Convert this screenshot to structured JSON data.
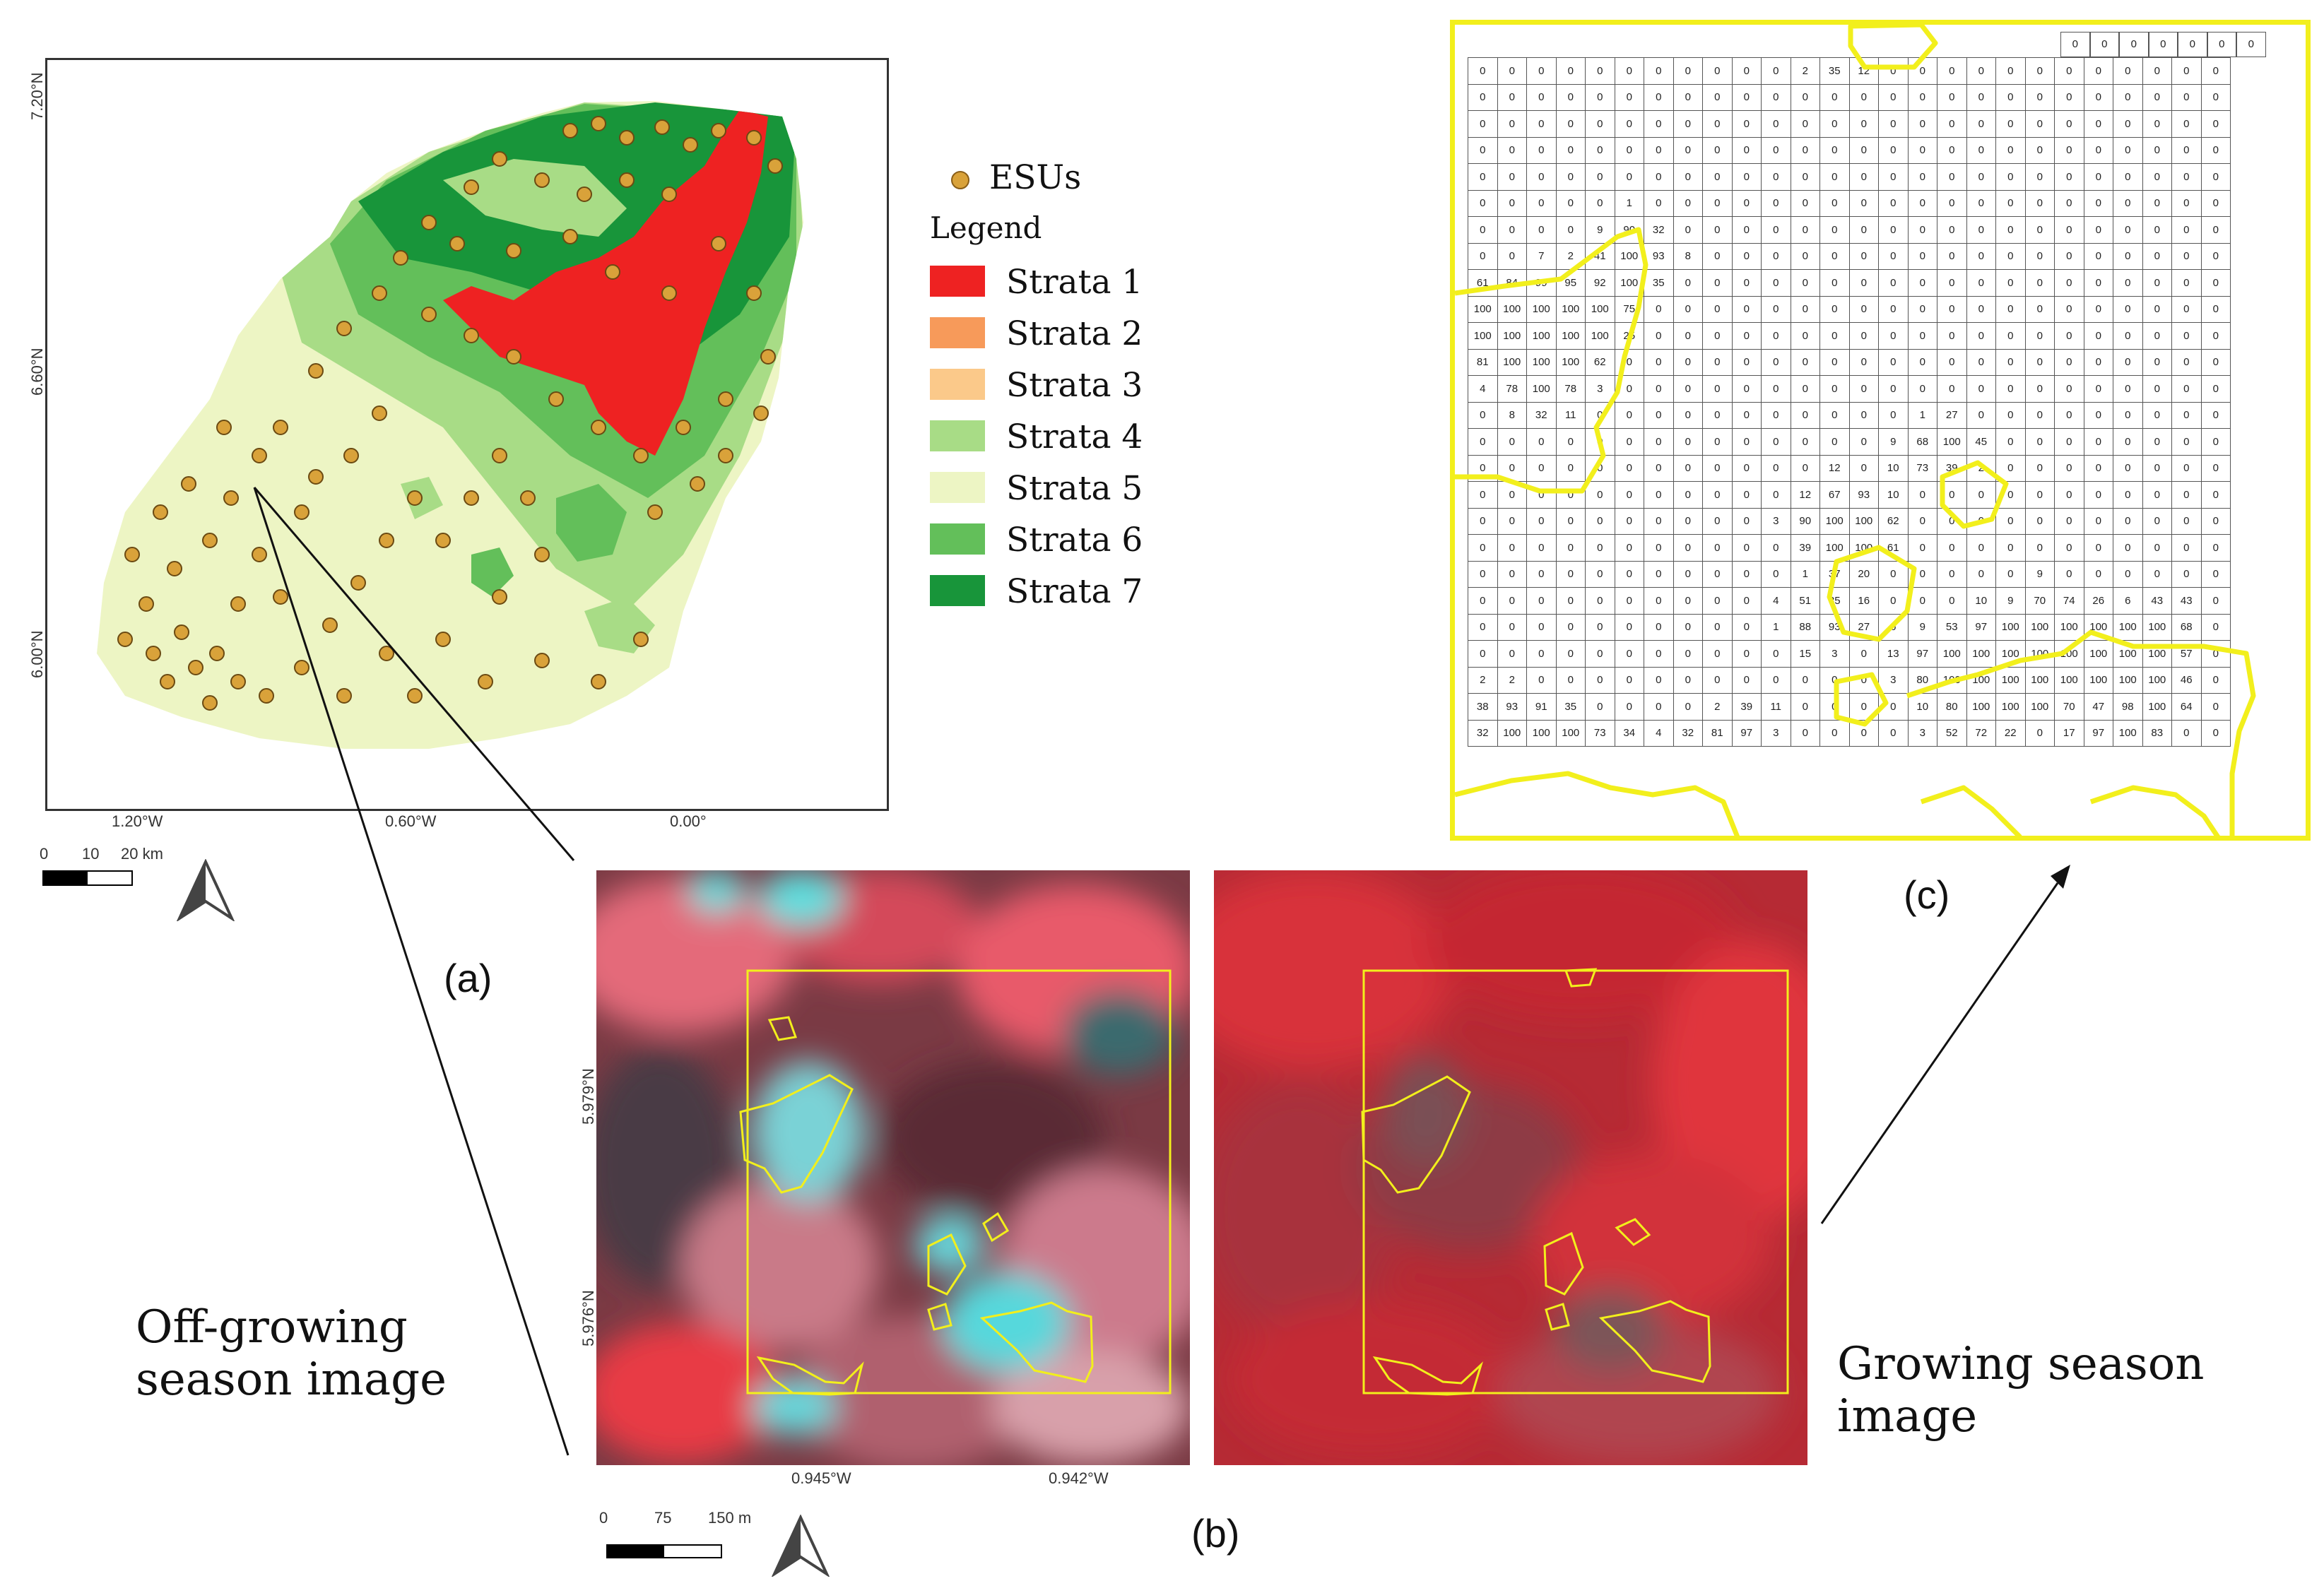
{
  "panel_a": {
    "label": "(a)",
    "lat_ticks": [
      "7.20°N",
      "6.60°N",
      "6.00°N"
    ],
    "lon_ticks": [
      "1.20°W",
      "0.60°W",
      "0.00°"
    ],
    "scale": {
      "ticks": [
        "0",
        "10",
        "20 km"
      ]
    },
    "legend": {
      "points_label": "ESUs",
      "points_color": "#d9a23a",
      "title": "Legend",
      "strata": [
        {
          "label": "Strata 1",
          "color": "#ee2222"
        },
        {
          "label": "Strata 2",
          "color": "#f79a5a"
        },
        {
          "label": "Strata 3",
          "color": "#fbc98a"
        },
        {
          "label": "Strata 4",
          "color": "#a8dc86"
        },
        {
          "label": "Strata 5",
          "color": "#edf5c4"
        },
        {
          "label": "Strata 6",
          "color": "#63bf5a"
        },
        {
          "label": "Strata 7",
          "color": "#18953a"
        }
      ]
    }
  },
  "panel_b": {
    "label": "(b)",
    "lat_ticks": [
      "5.979°N",
      "5.976°N"
    ],
    "lon_ticks": [
      "0.945°W",
      "0.942°W"
    ],
    "scale": {
      "ticks": [
        "0",
        "75",
        "150 m"
      ]
    },
    "caption_left": [
      "Off-growing",
      "season image"
    ],
    "caption_right": [
      "Growing season",
      "image"
    ]
  },
  "panel_c": {
    "label": "(c)",
    "top_row": [
      "0",
      "0",
      "0",
      "0",
      "0",
      "0",
      "0"
    ],
    "grid": [
      [
        0,
        0,
        0,
        0,
        0,
        0,
        0,
        0,
        0,
        0,
        0,
        2,
        35,
        12,
        0,
        0,
        0,
        0,
        0,
        0,
        0,
        0,
        0,
        0,
        0,
        0
      ],
      [
        0,
        0,
        0,
        0,
        0,
        0,
        0,
        0,
        0,
        0,
        0,
        0,
        0,
        0,
        0,
        0,
        0,
        0,
        0,
        0,
        0,
        0,
        0,
        0,
        0,
        0
      ],
      [
        0,
        0,
        0,
        0,
        0,
        0,
        0,
        0,
        0,
        0,
        0,
        0,
        0,
        0,
        0,
        0,
        0,
        0,
        0,
        0,
        0,
        0,
        0,
        0,
        0,
        0
      ],
      [
        0,
        0,
        0,
        0,
        0,
        0,
        0,
        0,
        0,
        0,
        0,
        0,
        0,
        0,
        0,
        0,
        0,
        0,
        0,
        0,
        0,
        0,
        0,
        0,
        0,
        0
      ],
      [
        0,
        0,
        0,
        0,
        0,
        0,
        0,
        0,
        0,
        0,
        0,
        0,
        0,
        0,
        0,
        0,
        0,
        0,
        0,
        0,
        0,
        0,
        0,
        0,
        0,
        0
      ],
      [
        0,
        0,
        0,
        0,
        0,
        1,
        0,
        0,
        0,
        0,
        0,
        0,
        0,
        0,
        0,
        0,
        0,
        0,
        0,
        0,
        0,
        0,
        0,
        0,
        0,
        0
      ],
      [
        0,
        0,
        0,
        0,
        9,
        90,
        32,
        0,
        0,
        0,
        0,
        0,
        0,
        0,
        0,
        0,
        0,
        0,
        0,
        0,
        0,
        0,
        0,
        0,
        0,
        0
      ],
      [
        0,
        0,
        7,
        2,
        41,
        100,
        93,
        8,
        0,
        0,
        0,
        0,
        0,
        0,
        0,
        0,
        0,
        0,
        0,
        0,
        0,
        0,
        0,
        0,
        0,
        0
      ],
      [
        61,
        84,
        99,
        95,
        92,
        100,
        35,
        0,
        0,
        0,
        0,
        0,
        0,
        0,
        0,
        0,
        0,
        0,
        0,
        0,
        0,
        0,
        0,
        0,
        0,
        0
      ],
      [
        100,
        100,
        100,
        100,
        100,
        75,
        0,
        0,
        0,
        0,
        0,
        0,
        0,
        0,
        0,
        0,
        0,
        0,
        0,
        0,
        0,
        0,
        0,
        0,
        0,
        0
      ],
      [
        100,
        100,
        100,
        100,
        100,
        25,
        0,
        0,
        0,
        0,
        0,
        0,
        0,
        0,
        0,
        0,
        0,
        0,
        0,
        0,
        0,
        0,
        0,
        0,
        0,
        0
      ],
      [
        81,
        100,
        100,
        100,
        62,
        0,
        0,
        0,
        0,
        0,
        0,
        0,
        0,
        0,
        0,
        0,
        0,
        0,
        0,
        0,
        0,
        0,
        0,
        0,
        0,
        0
      ],
      [
        4,
        78,
        100,
        78,
        3,
        0,
        0,
        0,
        0,
        0,
        0,
        0,
        0,
        0,
        0,
        0,
        0,
        0,
        0,
        0,
        0,
        0,
        0,
        0,
        0,
        0
      ],
      [
        0,
        8,
        32,
        11,
        0,
        0,
        0,
        0,
        0,
        0,
        0,
        0,
        0,
        0,
        0,
        1,
        27,
        0,
        0,
        0,
        0,
        0,
        0,
        0,
        0,
        0
      ],
      [
        0,
        0,
        0,
        0,
        0,
        0,
        0,
        0,
        0,
        0,
        0,
        0,
        0,
        0,
        9,
        68,
        100,
        45,
        0,
        0,
        0,
        0,
        0,
        0,
        0,
        0
      ],
      [
        0,
        0,
        0,
        0,
        0,
        0,
        0,
        0,
        0,
        0,
        0,
        0,
        12,
        0,
        10,
        73,
        39,
        2,
        0,
        0,
        0,
        0,
        0,
        0,
        0,
        0
      ],
      [
        0,
        0,
        0,
        0,
        0,
        0,
        0,
        0,
        0,
        0,
        0,
        12,
        67,
        93,
        10,
        0,
        0,
        0,
        0,
        0,
        0,
        0,
        0,
        0,
        0,
        0
      ],
      [
        0,
        0,
        0,
        0,
        0,
        0,
        0,
        0,
        0,
        0,
        3,
        90,
        100,
        100,
        62,
        0,
        0,
        0,
        0,
        0,
        0,
        0,
        0,
        0,
        0,
        0
      ],
      [
        0,
        0,
        0,
        0,
        0,
        0,
        0,
        0,
        0,
        0,
        0,
        39,
        100,
        100,
        61,
        0,
        0,
        0,
        0,
        0,
        0,
        0,
        0,
        0,
        0,
        0
      ],
      [
        0,
        0,
        0,
        0,
        0,
        0,
        0,
        0,
        0,
        0,
        0,
        1,
        37,
        20,
        0,
        0,
        0,
        0,
        0,
        9,
        0,
        0,
        0,
        0,
        0,
        0
      ],
      [
        0,
        0,
        0,
        0,
        0,
        0,
        0,
        0,
        0,
        0,
        4,
        51,
        85,
        16,
        0,
        0,
        0,
        10,
        9,
        70,
        74,
        26,
        6,
        43,
        43,
        0
      ],
      [
        0,
        0,
        0,
        0,
        0,
        0,
        0,
        0,
        0,
        0,
        1,
        88,
        93,
        27,
        6,
        9,
        53,
        97,
        100,
        100,
        100,
        100,
        100,
        100,
        68,
        0
      ],
      [
        0,
        0,
        0,
        0,
        0,
        0,
        0,
        0,
        0,
        0,
        0,
        15,
        3,
        0,
        13,
        97,
        100,
        100,
        100,
        100,
        100,
        100,
        100,
        100,
        57,
        0
      ],
      [
        2,
        2,
        0,
        0,
        0,
        0,
        0,
        0,
        0,
        0,
        0,
        0,
        0,
        0,
        3,
        80,
        100,
        100,
        100,
        100,
        100,
        100,
        100,
        100,
        46,
        0
      ],
      [
        38,
        93,
        91,
        35,
        0,
        0,
        0,
        0,
        2,
        39,
        11,
        0,
        0,
        0,
        0,
        10,
        80,
        100,
        100,
        100,
        70,
        47,
        98,
        100,
        64,
        0
      ],
      [
        32,
        100,
        100,
        100,
        73,
        34,
        4,
        32,
        81,
        97,
        3,
        0,
        0,
        0,
        0,
        3,
        52,
        72,
        22,
        0,
        17,
        97,
        100,
        83,
        0,
        0
      ]
    ]
  }
}
